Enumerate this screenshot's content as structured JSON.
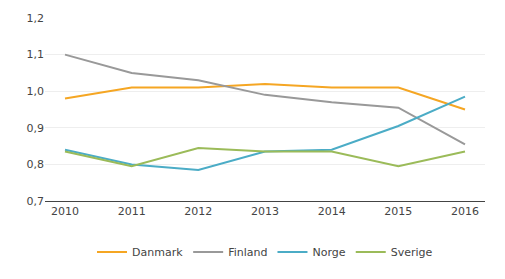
{
  "chart_data": {
    "type": "line",
    "x": [
      2010,
      2011,
      2012,
      2013,
      2014,
      2015,
      2016
    ],
    "series": [
      {
        "name": "Danmark",
        "color": "#F5A623",
        "values": [
          0.98,
          1.01,
          1.01,
          1.02,
          1.01,
          1.01,
          0.95
        ]
      },
      {
        "name": "Finland",
        "color": "#999999",
        "values": [
          1.1,
          1.05,
          1.03,
          0.99,
          0.97,
          0.955,
          0.855
        ]
      },
      {
        "name": "Norge",
        "color": "#4BACC6",
        "values": [
          0.84,
          0.8,
          0.785,
          0.835,
          0.84,
          0.905,
          0.985
        ]
      },
      {
        "name": "Sverige",
        "color": "#9BBB59",
        "values": [
          0.835,
          0.795,
          0.845,
          0.835,
          0.835,
          0.795,
          0.835
        ]
      }
    ],
    "xlim": [
      2009.7,
      2016.3
    ],
    "xticks": [
      2010,
      2011,
      2012,
      2013,
      2014,
      2015,
      2016
    ],
    "ylim": [
      0.7,
      1.2
    ],
    "yticks": [
      {
        "value": 0.7,
        "label": "0,7"
      },
      {
        "value": 0.8,
        "label": "0,8"
      },
      {
        "value": 0.9,
        "label": "0,9"
      },
      {
        "value": 1.0,
        "label": "1,0"
      },
      {
        "value": 1.1,
        "label": "1,1"
      },
      {
        "value": 1.2,
        "label": "1,2"
      }
    ],
    "grid": "y",
    "legend": "bottom"
  }
}
